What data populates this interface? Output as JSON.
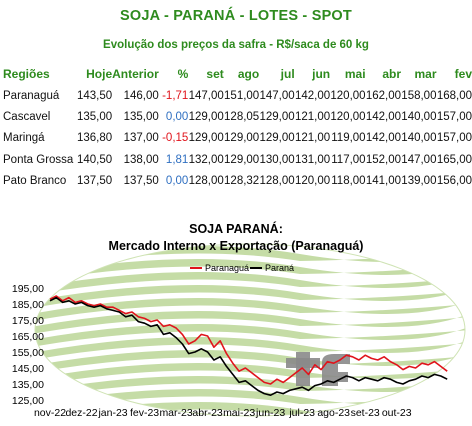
{
  "header": {
    "title": "SOJA - PARANÁ - LOTES - SPOT",
    "subtitle": "Evolução dos preços da safra - R$/saca de 60 kg"
  },
  "table": {
    "columns": [
      "Regiões",
      "Hoje",
      "Anterior",
      "%",
      "set",
      "ago",
      "jul",
      "jun",
      "mai",
      "abr",
      "mar",
      "fev"
    ],
    "rows": [
      {
        "region": "Paranaguá",
        "hoje": "143,50",
        "anterior": "146,00",
        "pct": "-1,71",
        "pct_sign": "neg",
        "set": "147,00",
        "ago": "151,00",
        "jul": "147,00",
        "jun": "142,00",
        "mai": "120,00",
        "abr": "162,00",
        "mar": "158,00",
        "fev": "168,00"
      },
      {
        "region": "Cascavel",
        "hoje": "135,00",
        "anterior": "135,00",
        "pct": "0,00",
        "pct_sign": "pos",
        "set": "129,00",
        "ago": "128,05",
        "jul": "129,00",
        "jun": "121,00",
        "mai": "120,00",
        "abr": "142,00",
        "mar": "140,00",
        "fev": "157,00"
      },
      {
        "region": "Maringá",
        "hoje": "136,80",
        "anterior": "137,00",
        "pct": "-0,15",
        "pct_sign": "neg",
        "set": "129,00",
        "ago": "129,00",
        "jul": "129,00",
        "jun": "121,00",
        "mai": "119,00",
        "abr": "142,00",
        "mar": "140,00",
        "fev": "157,00"
      },
      {
        "region": "Ponta Grossa",
        "hoje": "140,50",
        "anterior": "138,00",
        "pct": "1,81",
        "pct_sign": "pos",
        "set": "132,00",
        "ago": "129,00",
        "jul": "130,00",
        "jun": "131,00",
        "mai": "117,00",
        "abr": "152,00",
        "mar": "147,00",
        "fev": "165,00"
      },
      {
        "region": "Pato Branco",
        "hoje": "137,50",
        "anterior": "137,50",
        "pct": "0,00",
        "pct_sign": "pos",
        "set": "128,00",
        "ago": "128,32",
        "jul": "128,00",
        "jun": "120,00",
        "mai": "118,00",
        "abr": "141,00",
        "mar": "139,00",
        "fev": "156,00"
      }
    ]
  },
  "chart_data": {
    "type": "line",
    "title": "SOJA PARANÁ:",
    "subtitle": "Mercado Interno x Exportação (Paranaguá)",
    "legend_position": "top-center",
    "ylim": [
      125,
      195
    ],
    "yticks": [
      "125,00",
      "135,00",
      "145,00",
      "155,00",
      "165,00",
      "175,00",
      "185,00",
      "195,00"
    ],
    "xticks": [
      "nov-22",
      "dez-22",
      "jan-23",
      "fev-23",
      "mar-23",
      "abr-23",
      "mai-23",
      "jun-23",
      "jul-23",
      "ago-23",
      "set-23",
      "out-23"
    ],
    "x_range": [
      0,
      12.5
    ],
    "series": [
      {
        "name": "Paranaguá",
        "color": "#e0141c",
        "points": [
          [
            0.0,
            188
          ],
          [
            0.2,
            190
          ],
          [
            0.4,
            187
          ],
          [
            0.6,
            189
          ],
          [
            0.8,
            186
          ],
          [
            1.0,
            187
          ],
          [
            1.2,
            185
          ],
          [
            1.4,
            184
          ],
          [
            1.6,
            185
          ],
          [
            1.8,
            183
          ],
          [
            2.0,
            183
          ],
          [
            2.2,
            181
          ],
          [
            2.4,
            179
          ],
          [
            2.6,
            180
          ],
          [
            2.8,
            177
          ],
          [
            3.0,
            176
          ],
          [
            3.2,
            174
          ],
          [
            3.4,
            175
          ],
          [
            3.6,
            171
          ],
          [
            3.8,
            172
          ],
          [
            4.0,
            170
          ],
          [
            4.2,
            166
          ],
          [
            4.4,
            160
          ],
          [
            4.6,
            162
          ],
          [
            4.8,
            166
          ],
          [
            5.0,
            165
          ],
          [
            5.2,
            158
          ],
          [
            5.4,
            162
          ],
          [
            5.6,
            154
          ],
          [
            5.8,
            148
          ],
          [
            6.0,
            143
          ],
          [
            6.2,
            145
          ],
          [
            6.4,
            142
          ],
          [
            6.6,
            139
          ],
          [
            6.8,
            136
          ],
          [
            7.0,
            135
          ],
          [
            7.2,
            138
          ],
          [
            7.4,
            136
          ],
          [
            7.6,
            139
          ],
          [
            7.8,
            142
          ],
          [
            8.0,
            145
          ],
          [
            8.2,
            141
          ],
          [
            8.4,
            147
          ],
          [
            8.6,
            144
          ],
          [
            8.8,
            149
          ],
          [
            9.0,
            148
          ],
          [
            9.2,
            150
          ],
          [
            9.4,
            153
          ],
          [
            9.6,
            152
          ],
          [
            9.8,
            150
          ],
          [
            10.0,
            153
          ],
          [
            10.2,
            151
          ],
          [
            10.4,
            150
          ],
          [
            10.6,
            152
          ],
          [
            10.8,
            149
          ],
          [
            11.0,
            147
          ],
          [
            11.2,
            144
          ],
          [
            11.4,
            146
          ],
          [
            11.6,
            145
          ],
          [
            11.8,
            148
          ],
          [
            12.0,
            147
          ],
          [
            12.2,
            149
          ],
          [
            12.4,
            146
          ],
          [
            12.6,
            143
          ]
        ]
      },
      {
        "name": "Paraná",
        "color": "#000000",
        "points": [
          [
            0.0,
            187
          ],
          [
            0.2,
            189
          ],
          [
            0.4,
            186
          ],
          [
            0.6,
            187
          ],
          [
            0.8,
            185
          ],
          [
            1.0,
            186
          ],
          [
            1.2,
            184
          ],
          [
            1.4,
            183
          ],
          [
            1.6,
            184
          ],
          [
            1.8,
            182
          ],
          [
            2.0,
            181
          ],
          [
            2.2,
            180
          ],
          [
            2.4,
            177
          ],
          [
            2.6,
            178
          ],
          [
            2.8,
            174
          ],
          [
            3.0,
            173
          ],
          [
            3.2,
            171
          ],
          [
            3.4,
            172
          ],
          [
            3.6,
            166
          ],
          [
            3.8,
            167
          ],
          [
            4.0,
            164
          ],
          [
            4.2,
            160
          ],
          [
            4.4,
            154
          ],
          [
            4.6,
            155
          ],
          [
            4.8,
            157
          ],
          [
            5.0,
            155
          ],
          [
            5.2,
            150
          ],
          [
            5.4,
            152
          ],
          [
            5.6,
            146
          ],
          [
            5.8,
            141
          ],
          [
            6.0,
            136
          ],
          [
            6.2,
            137
          ],
          [
            6.4,
            134
          ],
          [
            6.6,
            131
          ],
          [
            6.8,
            129
          ],
          [
            7.0,
            128
          ],
          [
            7.2,
            130
          ],
          [
            7.4,
            129
          ],
          [
            7.6,
            131
          ],
          [
            7.8,
            132
          ],
          [
            8.0,
            133
          ],
          [
            8.2,
            131
          ],
          [
            8.4,
            134
          ],
          [
            8.6,
            135
          ],
          [
            8.8,
            137
          ],
          [
            9.0,
            136
          ],
          [
            9.2,
            138
          ],
          [
            9.4,
            140
          ],
          [
            9.6,
            139
          ],
          [
            9.8,
            137
          ],
          [
            10.0,
            139
          ],
          [
            10.2,
            138
          ],
          [
            10.4,
            137
          ],
          [
            10.6,
            139
          ],
          [
            10.8,
            138
          ],
          [
            11.0,
            136
          ],
          [
            11.2,
            135
          ],
          [
            11.4,
            137
          ],
          [
            11.6,
            138
          ],
          [
            11.8,
            140
          ],
          [
            12.0,
            139
          ],
          [
            12.2,
            141
          ],
          [
            12.4,
            140
          ],
          [
            12.6,
            138
          ]
        ]
      }
    ]
  }
}
